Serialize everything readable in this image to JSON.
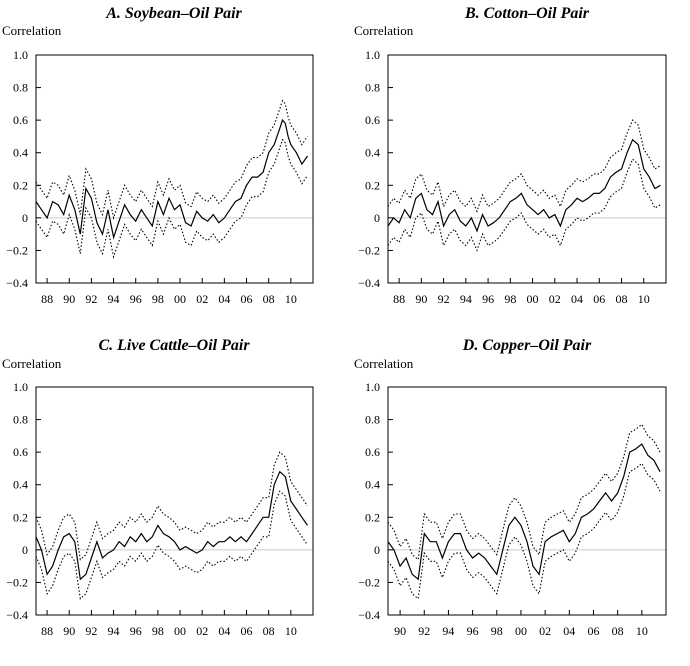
{
  "chart_data": [
    {
      "type": "line",
      "title": "A. Soybean–Oil Pair",
      "ylabel": "Correlation",
      "xlabel": "",
      "xlim": [
        1987,
        2012
      ],
      "ylim": [
        -0.4,
        1.0
      ],
      "yticks": [
        "1.0",
        "0.8",
        "0.6",
        "0.4",
        "0.2",
        "0",
        "−0.2",
        "−0.4"
      ],
      "xticks": [
        {
          "year": 1988,
          "label": "88"
        },
        {
          "year": 1990,
          "label": "90"
        },
        {
          "year": 1992,
          "label": "92"
        },
        {
          "year": 1994,
          "label": "94"
        },
        {
          "year": 1996,
          "label": "96"
        },
        {
          "year": 1998,
          "label": "98"
        },
        {
          "year": 2000,
          "label": "00"
        },
        {
          "year": 2002,
          "label": "02"
        },
        {
          "year": 2004,
          "label": "04"
        },
        {
          "year": 2006,
          "label": "06"
        },
        {
          "year": 2008,
          "label": "08"
        },
        {
          "year": 2010,
          "label": "10"
        }
      ],
      "grid": false,
      "zero_line": true,
      "colors": {
        "line": "#000000",
        "zero_line": "#cccccc"
      },
      "band_width": 0.12,
      "series": [
        {
          "style": "solid",
          "x": [
            1987.0,
            1987.5,
            1988.0,
            1988.5,
            1989.0,
            1989.5,
            1990.0,
            1990.5,
            1991.0,
            1991.5,
            1992.0,
            1992.5,
            1993.0,
            1993.5,
            1994.0,
            1994.5,
            1995.0,
            1995.5,
            1996.0,
            1996.5,
            1997.0,
            1997.5,
            1998.0,
            1998.5,
            1999.0,
            1999.5,
            2000.0,
            2000.5,
            2001.0,
            2001.5,
            2002.0,
            2002.5,
            2003.0,
            2003.5,
            2004.0,
            2004.5,
            2005.0,
            2005.5,
            2006.0,
            2006.5,
            2007.0,
            2007.5,
            2008.0,
            2008.5,
            2009.0,
            2009.25,
            2009.5,
            2009.75,
            2010.0,
            2010.5,
            2011.0,
            2011.5
          ],
          "y": [
            0.1,
            0.05,
            0.0,
            0.1,
            0.08,
            0.02,
            0.14,
            0.05,
            -0.1,
            0.18,
            0.12,
            -0.03,
            -0.1,
            0.05,
            -0.12,
            -0.02,
            0.08,
            0.02,
            -0.02,
            0.05,
            0.0,
            -0.05,
            0.1,
            0.02,
            0.12,
            0.05,
            0.08,
            -0.03,
            -0.05,
            0.04,
            0.0,
            -0.02,
            0.02,
            -0.03,
            0.0,
            0.05,
            0.1,
            0.12,
            0.2,
            0.25,
            0.25,
            0.28,
            0.4,
            0.45,
            0.55,
            0.6,
            0.58,
            0.5,
            0.45,
            0.4,
            0.33,
            0.38
          ]
        }
      ]
    },
    {
      "type": "line",
      "title": "B. Cotton–Oil Pair",
      "ylabel": "Correlation",
      "xlabel": "",
      "xlim": [
        1987,
        2012
      ],
      "ylim": [
        -0.4,
        1.0
      ],
      "yticks": [
        "1.0",
        "0.8",
        "0.6",
        "0.4",
        "0.2",
        "0",
        "−0.2",
        "−0.4"
      ],
      "xticks": [
        {
          "year": 1988,
          "label": "88"
        },
        {
          "year": 1990,
          "label": "90"
        },
        {
          "year": 1992,
          "label": "92"
        },
        {
          "year": 1994,
          "label": "94"
        },
        {
          "year": 1996,
          "label": "96"
        },
        {
          "year": 1998,
          "label": "98"
        },
        {
          "year": 2000,
          "label": "00"
        },
        {
          "year": 2002,
          "label": "02"
        },
        {
          "year": 2004,
          "label": "04"
        },
        {
          "year": 2006,
          "label": "06"
        },
        {
          "year": 2008,
          "label": "08"
        },
        {
          "year": 2010,
          "label": "10"
        }
      ],
      "grid": false,
      "zero_line": true,
      "colors": {
        "line": "#000000",
        "zero_line": "#cccccc"
      },
      "band_width": 0.12,
      "series": [
        {
          "style": "solid",
          "x": [
            1987.0,
            1987.5,
            1988.0,
            1988.5,
            1989.0,
            1989.5,
            1990.0,
            1990.5,
            1991.0,
            1991.5,
            1992.0,
            1992.5,
            1993.0,
            1993.5,
            1994.0,
            1994.5,
            1995.0,
            1995.5,
            1996.0,
            1996.5,
            1997.0,
            1997.5,
            1998.0,
            1998.5,
            1999.0,
            1999.5,
            2000.0,
            2000.5,
            2001.0,
            2001.5,
            2002.0,
            2002.5,
            2003.0,
            2003.5,
            2004.0,
            2004.5,
            2005.0,
            2005.5,
            2006.0,
            2006.5,
            2007.0,
            2007.5,
            2008.0,
            2008.5,
            2009.0,
            2009.5,
            2010.0,
            2010.5,
            2011.0,
            2011.5
          ],
          "y": [
            -0.05,
            0.0,
            -0.03,
            0.05,
            0.0,
            0.12,
            0.15,
            0.05,
            0.02,
            0.1,
            -0.05,
            0.02,
            0.05,
            -0.02,
            -0.05,
            0.0,
            -0.08,
            0.02,
            -0.05,
            -0.03,
            0.0,
            0.05,
            0.1,
            0.12,
            0.15,
            0.08,
            0.05,
            0.02,
            0.05,
            0.0,
            0.02,
            -0.05,
            0.05,
            0.08,
            0.12,
            0.1,
            0.12,
            0.15,
            0.15,
            0.18,
            0.25,
            0.28,
            0.3,
            0.4,
            0.48,
            0.45,
            0.3,
            0.25,
            0.18,
            0.2
          ]
        }
      ]
    },
    {
      "type": "line",
      "title": "C. Live Cattle–Oil Pair",
      "ylabel": "Correlation",
      "xlabel": "",
      "xlim": [
        1987,
        2012
      ],
      "ylim": [
        -0.4,
        1.0
      ],
      "yticks": [
        "1.0",
        "0.8",
        "0.6",
        "0.4",
        "0.2",
        "0",
        "−0.2",
        "−0.4"
      ],
      "xticks": [
        {
          "year": 1988,
          "label": "88"
        },
        {
          "year": 1990,
          "label": "90"
        },
        {
          "year": 1992,
          "label": "92"
        },
        {
          "year": 1994,
          "label": "94"
        },
        {
          "year": 1996,
          "label": "96"
        },
        {
          "year": 1998,
          "label": "98"
        },
        {
          "year": 2000,
          "label": "00"
        },
        {
          "year": 2002,
          "label": "02"
        },
        {
          "year": 2004,
          "label": "04"
        },
        {
          "year": 2006,
          "label": "06"
        },
        {
          "year": 2008,
          "label": "08"
        },
        {
          "year": 2010,
          "label": "10"
        }
      ],
      "grid": false,
      "zero_line": true,
      "colors": {
        "line": "#000000",
        "zero_line": "#cccccc"
      },
      "band_width": 0.12,
      "series": [
        {
          "style": "solid",
          "x": [
            1987.0,
            1987.5,
            1988.0,
            1988.5,
            1989.0,
            1989.5,
            1990.0,
            1990.5,
            1991.0,
            1991.5,
            1992.0,
            1992.5,
            1993.0,
            1993.5,
            1994.0,
            1994.5,
            1995.0,
            1995.5,
            1996.0,
            1996.5,
            1997.0,
            1997.5,
            1998.0,
            1998.5,
            1999.0,
            1999.5,
            2000.0,
            2000.5,
            2001.0,
            2001.5,
            2002.0,
            2002.5,
            2003.0,
            2003.5,
            2004.0,
            2004.5,
            2005.0,
            2005.5,
            2006.0,
            2006.5,
            2007.0,
            2007.5,
            2008.0,
            2008.5,
            2009.0,
            2009.5,
            2010.0,
            2010.5,
            2011.0,
            2011.5
          ],
          "y": [
            0.08,
            0.0,
            -0.15,
            -0.1,
            0.0,
            0.08,
            0.1,
            0.05,
            -0.18,
            -0.15,
            -0.05,
            0.05,
            -0.05,
            -0.02,
            0.0,
            0.05,
            0.02,
            0.08,
            0.05,
            0.1,
            0.05,
            0.08,
            0.15,
            0.1,
            0.08,
            0.05,
            0.0,
            0.02,
            0.0,
            -0.02,
            0.0,
            0.05,
            0.02,
            0.05,
            0.05,
            0.08,
            0.05,
            0.08,
            0.05,
            0.1,
            0.15,
            0.2,
            0.2,
            0.4,
            0.48,
            0.45,
            0.3,
            0.25,
            0.2,
            0.15
          ]
        }
      ]
    },
    {
      "type": "line",
      "title": "D. Copper–Oil Pair",
      "ylabel": "Correlation",
      "xlabel": "",
      "xlim": [
        1989,
        2012
      ],
      "ylim": [
        -0.4,
        1.0
      ],
      "yticks": [
        "1.0",
        "0.8",
        "0.6",
        "0.4",
        "0.2",
        "0",
        "−0.2",
        "−0.4"
      ],
      "xticks": [
        {
          "year": 1990,
          "label": "90"
        },
        {
          "year": 1992,
          "label": "92"
        },
        {
          "year": 1994,
          "label": "94"
        },
        {
          "year": 1996,
          "label": "96"
        },
        {
          "year": 1998,
          "label": "98"
        },
        {
          "year": 2000,
          "label": "00"
        },
        {
          "year": 2002,
          "label": "02"
        },
        {
          "year": 2004,
          "label": "04"
        },
        {
          "year": 2006,
          "label": "06"
        },
        {
          "year": 2008,
          "label": "08"
        },
        {
          "year": 2010,
          "label": "10"
        }
      ],
      "grid": false,
      "zero_line": true,
      "colors": {
        "line": "#000000",
        "zero_line": "#cccccc"
      },
      "band_width": 0.12,
      "series": [
        {
          "style": "solid",
          "x": [
            1989.0,
            1989.5,
            1990.0,
            1990.5,
            1991.0,
            1991.5,
            1992.0,
            1992.5,
            1993.0,
            1993.5,
            1994.0,
            1994.5,
            1995.0,
            1995.5,
            1996.0,
            1996.5,
            1997.0,
            1997.5,
            1998.0,
            1998.5,
            1999.0,
            1999.5,
            2000.0,
            2000.5,
            2001.0,
            2001.5,
            2002.0,
            2002.5,
            2003.0,
            2003.5,
            2004.0,
            2004.5,
            2005.0,
            2005.5,
            2006.0,
            2006.5,
            2007.0,
            2007.5,
            2008.0,
            2008.5,
            2009.0,
            2009.5,
            2010.0,
            2010.5,
            2011.0,
            2011.5
          ],
          "y": [
            0.05,
            0.0,
            -0.1,
            -0.05,
            -0.15,
            -0.18,
            0.1,
            0.05,
            0.05,
            -0.05,
            0.05,
            0.1,
            0.1,
            0.0,
            -0.05,
            -0.02,
            -0.05,
            -0.1,
            -0.15,
            0.0,
            0.15,
            0.2,
            0.15,
            0.05,
            -0.1,
            -0.15,
            0.05,
            0.08,
            0.1,
            0.12,
            0.05,
            0.1,
            0.2,
            0.22,
            0.25,
            0.3,
            0.35,
            0.3,
            0.35,
            0.45,
            0.6,
            0.62,
            0.65,
            0.58,
            0.55,
            0.48
          ]
        }
      ]
    }
  ]
}
